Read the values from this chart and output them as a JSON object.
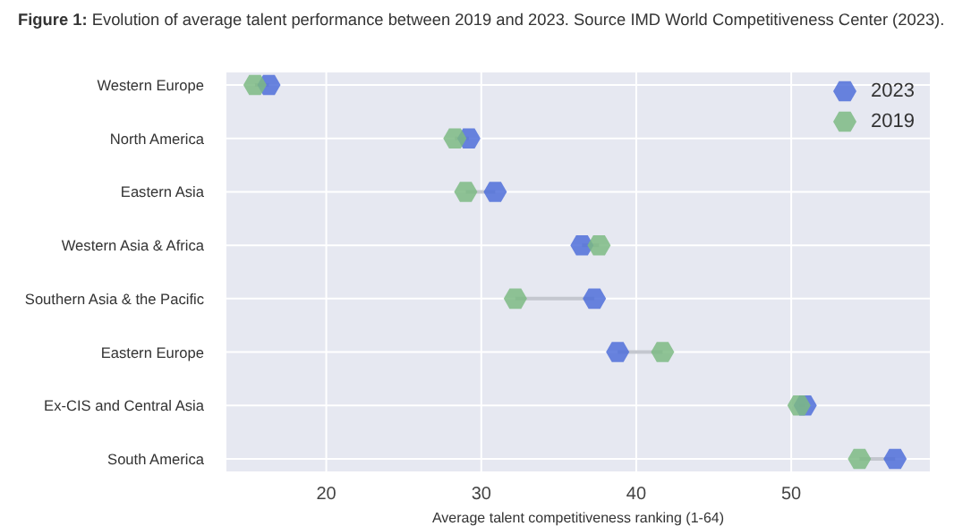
{
  "chart_data": {
    "type": "scatter",
    "title": "Figure 1: Evolution of average talent performance between 2019 and 2023. Source IMD World Competitiveness Center (2023).",
    "xlabel": "Average talent competitiveness ranking (1-64)",
    "categories": [
      "Western Europe",
      "North America",
      "Eastern Asia",
      "Western Asia & Africa",
      "Southern Asia & the Pacific",
      "Eastern Europe",
      "Ex-CIS and Central Asia",
      "South America"
    ],
    "orientation": "horizontal",
    "xlim": [
      13.5,
      59
    ],
    "xticks": [
      20,
      30,
      40,
      50
    ],
    "grid": true,
    "legend": "top right",
    "series": [
      {
        "name": "2023",
        "color": "#4f6fd9",
        "values": [
          16.3,
          29.2,
          30.9,
          36.5,
          37.3,
          38.8,
          50.9,
          56.7
        ]
      },
      {
        "name": "2019",
        "color": "#7dba84",
        "values": [
          15.4,
          28.3,
          29.0,
          37.6,
          32.2,
          41.7,
          50.5,
          54.4
        ]
      }
    ]
  }
}
